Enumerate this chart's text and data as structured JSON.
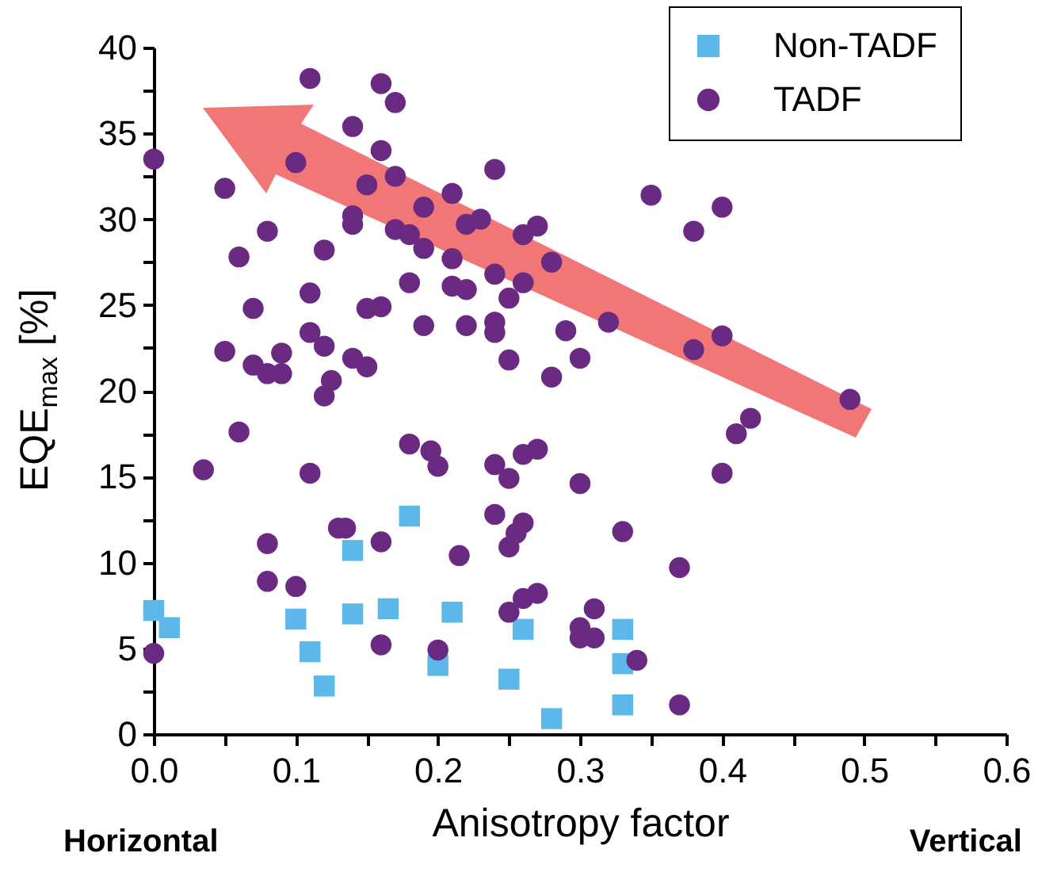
{
  "chart_data": {
    "type": "scatter",
    "xlabel": "Anisotropy factor",
    "ylabel": "EQE$_{max}$ [%]",
    "annotations": [
      "Horizontal",
      "Vertical"
    ],
    "xlim": [
      0,
      0.6
    ],
    "xticks": [
      {
        "value": 0,
        "label": "0.0"
      },
      {
        "value": 0.05,
        "label": null
      },
      0.1,
      {
        "value": 0.15,
        "label": null
      },
      0.2,
      {
        "value": 0.25,
        "label": null
      },
      0.3,
      {
        "value": 0.35,
        "label": null
      },
      0.4,
      {
        "value": 0.45,
        "label": null
      },
      0.5,
      {
        "value": 0.55,
        "label": null
      },
      0.6
    ],
    "ylim": [
      0,
      40
    ],
    "yticks": [
      0,
      {
        "value": 2.5,
        "label": null
      },
      5,
      {
        "value": 7.5,
        "label": null
      },
      10,
      {
        "value": 12.5,
        "label": null
      },
      15,
      {
        "value": 17.5,
        "label": null
      },
      20,
      {
        "value": 22.5,
        "label": null
      },
      25,
      {
        "value": 27.5,
        "label": null
      },
      30,
      {
        "value": 32.5,
        "label": null
      },
      35,
      {
        "value": 37.5,
        "label": null
      },
      40
    ],
    "grid": false,
    "legend": "top right",
    "series": [
      {
        "name": "Non-TADF",
        "color": "#5cb8e8",
        "marker": "square",
        "x": [
          0.0,
          0.011,
          0.1,
          0.11,
          0.12,
          0.14,
          0.14,
          0.165,
          0.18,
          0.2,
          0.21,
          0.25,
          0.26,
          0.28,
          0.33,
          0.33,
          0.33
        ],
        "values": [
          7.2,
          6.2,
          6.7,
          4.8,
          2.8,
          10.7,
          7.0,
          7.3,
          12.7,
          4.0,
          7.1,
          3.2,
          6.1,
          0.9,
          6.1,
          4.1,
          1.7
        ]
      },
      {
        "name": "TADF",
        "color": "#6a2a82",
        "marker": "circle",
        "x": [
          0,
          0,
          0.035,
          0.05,
          0.05,
          0.06,
          0.06,
          0.07,
          0.07,
          0.08,
          0.08,
          0.08,
          0.08,
          0.09,
          0.09,
          0.1,
          0.1,
          0.11,
          0.11,
          0.11,
          0.11,
          0.12,
          0.12,
          0.12,
          0.125,
          0.13,
          0.135,
          0.14,
          0.14,
          0.14,
          0.14,
          0.15,
          0.15,
          0.15,
          0.16,
          0.16,
          0.16,
          0.16,
          0.16,
          0.17,
          0.17,
          0.17,
          0.18,
          0.18,
          0.18,
          0.19,
          0.19,
          0.19,
          0.195,
          0.2,
          0.2,
          0.21,
          0.21,
          0.21,
          0.215,
          0.22,
          0.22,
          0.22,
          0.23,
          0.24,
          0.24,
          0.24,
          0.24,
          0.24,
          0.24,
          0.25,
          0.25,
          0.25,
          0.25,
          0.25,
          0.255,
          0.26,
          0.26,
          0.26,
          0.26,
          0.26,
          0.27,
          0.27,
          0.27,
          0.28,
          0.28,
          0.29,
          0.3,
          0.3,
          0.3,
          0.3,
          0.31,
          0.31,
          0.32,
          0.33,
          0.34,
          0.35,
          0.37,
          0.37,
          0.38,
          0.38,
          0.4,
          0.4,
          0.4,
          0.41,
          0.42,
          0.49
        ],
        "values": [
          33.5,
          4.7,
          15.4,
          31.8,
          22.3,
          17.6,
          27.8,
          24.8,
          21.5,
          29.3,
          21.0,
          11.1,
          8.9,
          21.0,
          22.2,
          8.6,
          33.3,
          38.2,
          23.4,
          25.7,
          15.2,
          28.2,
          22.6,
          19.7,
          20.6,
          12.0,
          12.0,
          35.4,
          30.2,
          29.7,
          21.9,
          32.0,
          24.8,
          21.4,
          37.9,
          34.0,
          24.9,
          11.2,
          5.2,
          36.8,
          32.5,
          29.4,
          29.1,
          26.3,
          16.9,
          30.7,
          28.3,
          23.8,
          16.5,
          15.6,
          4.9,
          31.5,
          27.7,
          26.1,
          10.4,
          25.9,
          23.8,
          29.7,
          30.0,
          32.9,
          26.8,
          24.0,
          23.4,
          12.8,
          15.7,
          25.4,
          21.8,
          14.9,
          10.9,
          7.1,
          11.7,
          29.1,
          26.3,
          16.3,
          12.3,
          7.9,
          29.6,
          16.6,
          8.2,
          27.5,
          20.8,
          23.5,
          21.9,
          14.6,
          6.2,
          5.6,
          7.3,
          5.6,
          24.0,
          11.8,
          4.3,
          31.4,
          9.7,
          1.7,
          29.3,
          22.4,
          30.7,
          23.2,
          15.2,
          17.5,
          18.4,
          19.5
        ]
      }
    ]
  }
}
